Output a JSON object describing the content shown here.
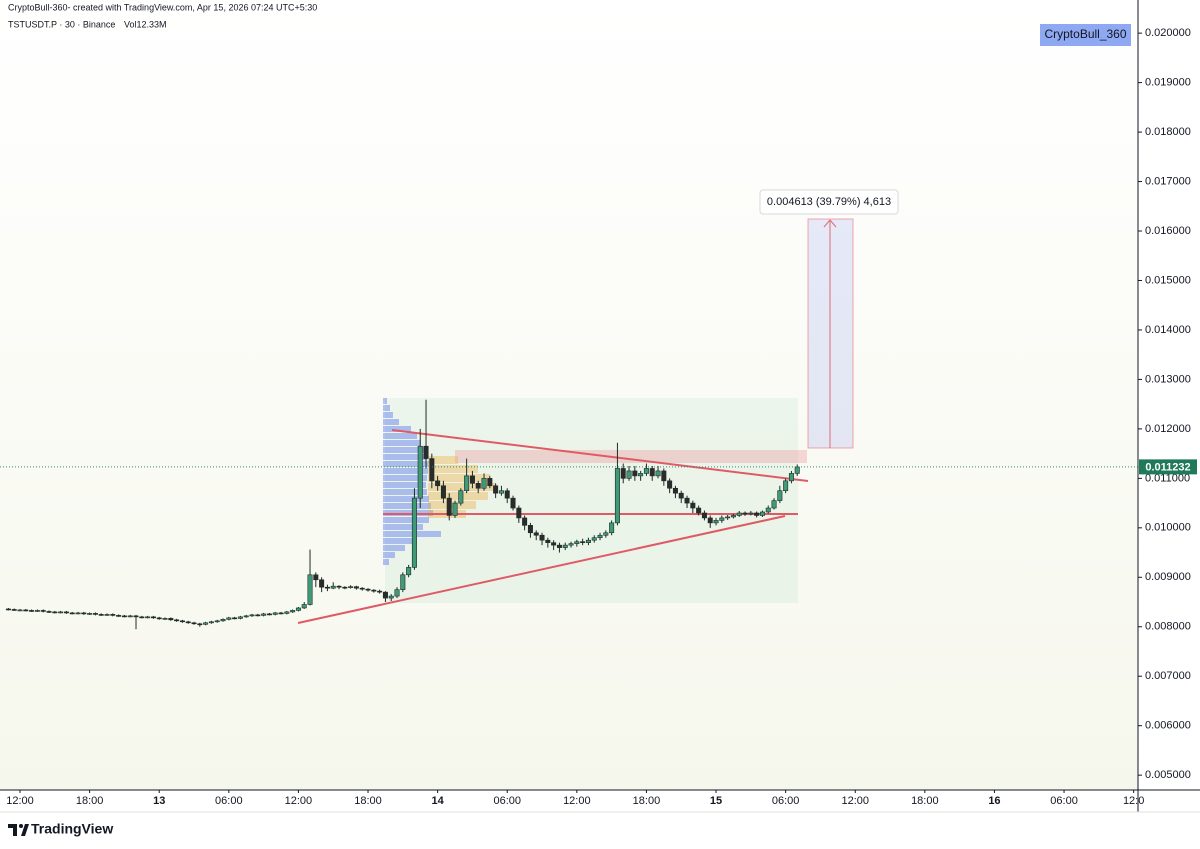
{
  "header": {
    "credit": "CryptoBull-360- created with TradingView.com, Apr 15, 2026 07:24 UTC+5:30",
    "symbol": "TSTUSDT.P · 30 · Binance",
    "volume": "Vol12.33M"
  },
  "watermark": "CryptoBull_360",
  "measure_label": "0.004613 (39.79%) 4,613",
  "footer_logo": "TradingView",
  "chart_data": {
    "type": "candlestick",
    "up_color": "#3f9a78",
    "down_color": "#2b2b2b",
    "last_price": 0.011232,
    "xlim": [
      -3.45,
      192.75
    ],
    "xticks": [
      {
        "value": 0,
        "label": "12:00"
      },
      {
        "value": 12,
        "label": "18:00"
      },
      {
        "value": 24,
        "label": "13"
      },
      {
        "value": 36,
        "label": "06:00"
      },
      {
        "value": 48,
        "label": "12:00"
      },
      {
        "value": 60,
        "label": "18:00"
      },
      {
        "value": 72,
        "label": "14"
      },
      {
        "value": 84,
        "label": "06:00"
      },
      {
        "value": 96,
        "label": "12:00"
      },
      {
        "value": 108,
        "label": "18:00"
      },
      {
        "value": 120,
        "label": "15"
      },
      {
        "value": 132,
        "label": "06:00"
      },
      {
        "value": 144,
        "label": "12:00"
      },
      {
        "value": 156,
        "label": "18:00"
      },
      {
        "value": 168,
        "label": "16"
      },
      {
        "value": 180,
        "label": "06:00"
      },
      {
        "value": 192,
        "label": "12:0"
      }
    ],
    "ylim": [
      0.0047,
      0.02067
    ],
    "yticks": [
      {
        "value": 0.005,
        "label": "0.005000"
      },
      {
        "value": 0.006,
        "label": "0.006000"
      },
      {
        "value": 0.007,
        "label": "0.007000"
      },
      {
        "value": 0.008,
        "label": "0.008000"
      },
      {
        "value": 0.009,
        "label": "0.009000"
      },
      {
        "value": 0.01,
        "label": "0.010000"
      },
      {
        "value": 0.011,
        "label": "0.011000"
      },
      {
        "value": 0.012,
        "label": "0.012000"
      },
      {
        "value": 0.013,
        "label": "0.013000"
      },
      {
        "value": 0.014,
        "label": "0.014000"
      },
      {
        "value": 0.015,
        "label": "0.015000"
      },
      {
        "value": 0.016,
        "label": "0.016000"
      },
      {
        "value": 0.017,
        "label": "0.017000"
      },
      {
        "value": 0.018,
        "label": "0.018000"
      },
      {
        "value": 0.019,
        "label": "0.019000"
      },
      {
        "value": 0.02,
        "label": "0.020000"
      }
    ],
    "x": [
      -2,
      -1,
      0,
      1,
      2,
      3,
      4,
      5,
      6,
      7,
      8,
      9,
      10,
      11,
      12,
      13,
      14,
      15,
      16,
      17,
      18,
      19,
      20,
      21,
      22,
      23,
      24,
      25,
      26,
      27,
      28,
      29,
      30,
      31,
      32,
      33,
      34,
      35,
      36,
      37,
      38,
      39,
      40,
      41,
      42,
      43,
      44,
      45,
      46,
      47,
      48,
      49,
      50,
      51,
      52,
      53,
      54,
      55,
      56,
      57,
      58,
      59,
      60,
      61,
      62,
      63,
      64,
      65,
      66,
      67,
      68,
      69,
      70,
      71,
      72,
      73,
      74,
      75,
      76,
      77,
      78,
      79,
      80,
      81,
      82,
      83,
      84,
      85,
      86,
      87,
      88,
      89,
      90,
      91,
      92,
      93,
      94,
      95,
      96,
      97,
      98,
      99,
      100,
      101,
      102,
      103,
      104,
      105,
      106,
      107,
      108,
      109,
      110,
      111,
      112,
      113,
      114,
      115,
      116,
      117,
      118,
      119,
      120,
      121,
      122,
      123,
      124,
      125,
      126,
      127,
      128,
      129,
      130,
      131,
      132,
      133,
      134
    ],
    "open": [
      0.00836,
      0.00835,
      0.00834,
      0.00834,
      0.00833,
      0.00832,
      0.00833,
      0.00831,
      0.0083,
      0.00829,
      0.0083,
      0.00828,
      0.00827,
      0.00828,
      0.00826,
      0.00827,
      0.00825,
      0.00824,
      0.00825,
      0.00823,
      0.00822,
      0.00821,
      0.00822,
      0.0082,
      0.00819,
      0.0082,
      0.00818,
      0.00816,
      0.00817,
      0.00814,
      0.00812,
      0.0081,
      0.00808,
      0.00806,
      0.00805,
      0.00808,
      0.0081,
      0.00812,
      0.00815,
      0.00818,
      0.00817,
      0.0082,
      0.00822,
      0.00824,
      0.00823,
      0.00826,
      0.00825,
      0.00828,
      0.00827,
      0.0083,
      0.00833,
      0.00838,
      0.00845,
      0.00905,
      0.00895,
      0.0088,
      0.00878,
      0.00882,
      0.0088,
      0.00879,
      0.00881,
      0.00878,
      0.00876,
      0.00874,
      0.00872,
      0.0087,
      0.00858,
      0.00862,
      0.00875,
      0.00905,
      0.0092,
      0.0106,
      0.01165,
      0.0114,
      0.01095,
      0.01085,
      0.0106,
      0.01025,
      0.0105,
      0.01075,
      0.01105,
      0.0109,
      0.0108,
      0.011,
      0.01085,
      0.0107,
      0.01075,
      0.0106,
      0.0104,
      0.0102,
      0.01005,
      0.0099,
      0.00985,
      0.00975,
      0.0097,
      0.00965,
      0.0096,
      0.00965,
      0.00968,
      0.00972,
      0.0097,
      0.00975,
      0.0098,
      0.00985,
      0.0099,
      0.0101,
      0.0112,
      0.011,
      0.01115,
      0.01105,
      0.0111,
      0.0112,
      0.01105,
      0.01115,
      0.01095,
      0.0108,
      0.0107,
      0.0106,
      0.0105,
      0.0104,
      0.0103,
      0.0102,
      0.0101,
      0.01015,
      0.0102,
      0.01022,
      0.01025,
      0.0103,
      0.01028,
      0.0103,
      0.01025,
      0.01032,
      0.0104,
      0.01055,
      0.01075,
      0.01095,
      0.0111
    ],
    "high": [
      0.00838,
      0.00837,
      0.00836,
      0.00836,
      0.00835,
      0.00835,
      0.00835,
      0.00833,
      0.00832,
      0.00832,
      0.00832,
      0.0083,
      0.0083,
      0.0083,
      0.00829,
      0.00829,
      0.00827,
      0.00827,
      0.00827,
      0.00825,
      0.00824,
      0.00824,
      0.00824,
      0.00822,
      0.00822,
      0.00822,
      0.0082,
      0.00819,
      0.00819,
      0.00816,
      0.00814,
      0.00812,
      0.0081,
      0.00808,
      0.0081,
      0.00812,
      0.00814,
      0.00817,
      0.0082,
      0.0082,
      0.00822,
      0.00824,
      0.00826,
      0.00826,
      0.00828,
      0.00828,
      0.0083,
      0.0083,
      0.00832,
      0.00835,
      0.0084,
      0.0085,
      0.00956,
      0.0091,
      0.009,
      0.00885,
      0.0089,
      0.00884,
      0.00882,
      0.00884,
      0.00883,
      0.0088,
      0.00878,
      0.00876,
      0.00875,
      0.00872,
      0.00866,
      0.0088,
      0.0091,
      0.00925,
      0.0108,
      0.012,
      0.01259,
      0.0115,
      0.01105,
      0.01095,
      0.0107,
      0.01055,
      0.0108,
      0.0114,
      0.01115,
      0.01095,
      0.0111,
      0.01105,
      0.0109,
      0.01085,
      0.0108,
      0.01065,
      0.01045,
      0.01025,
      0.0101,
      0.00995,
      0.0099,
      0.0098,
      0.00975,
      0.0097,
      0.0097,
      0.00972,
      0.00976,
      0.00978,
      0.0098,
      0.00985,
      0.0099,
      0.00995,
      0.01015,
      0.01172,
      0.0113,
      0.01125,
      0.01125,
      0.01115,
      0.0113,
      0.01125,
      0.01125,
      0.0112,
      0.011,
      0.01085,
      0.01075,
      0.01065,
      0.01055,
      0.01045,
      0.01035,
      0.01025,
      0.0102,
      0.01025,
      0.01026,
      0.01028,
      0.01034,
      0.01033,
      0.01034,
      0.01033,
      0.01035,
      0.01045,
      0.0106,
      0.01085,
      0.011,
      0.01115,
      0.01128
    ],
    "low": [
      0.00833,
      0.00832,
      0.00832,
      0.00831,
      0.0083,
      0.0083,
      0.00829,
      0.00828,
      0.00827,
      0.00827,
      0.00826,
      0.00825,
      0.00825,
      0.00824,
      0.00824,
      0.00823,
      0.00822,
      0.00822,
      0.00821,
      0.0082,
      0.00819,
      0.00819,
      0.00795,
      0.00817,
      0.00817,
      0.00816,
      0.00814,
      0.00814,
      0.00812,
      0.0081,
      0.00808,
      0.00806,
      0.00804,
      0.008,
      0.00803,
      0.00806,
      0.00808,
      0.0081,
      0.00813,
      0.00815,
      0.00815,
      0.00818,
      0.0082,
      0.00821,
      0.00821,
      0.00823,
      0.00823,
      0.00825,
      0.00825,
      0.00828,
      0.00831,
      0.00836,
      0.00843,
      0.0088,
      0.0087,
      0.00872,
      0.00876,
      0.00876,
      0.00876,
      0.00877,
      0.00875,
      0.00873,
      0.00871,
      0.00869,
      0.00867,
      0.0085,
      0.00852,
      0.00858,
      0.0087,
      0.009,
      0.00915,
      0.0104,
      0.0112,
      0.0108,
      0.01075,
      0.0105,
      0.01015,
      0.0102,
      0.01045,
      0.0107,
      0.0108,
      0.0107,
      0.01075,
      0.0108,
      0.0106,
      0.01065,
      0.0105,
      0.01035,
      0.0101,
      0.00995,
      0.0098,
      0.00975,
      0.00965,
      0.0096,
      0.00955,
      0.0095,
      0.00955,
      0.0096,
      0.00962,
      0.00965,
      0.00965,
      0.0097,
      0.00975,
      0.0098,
      0.00985,
      0.01005,
      0.0109,
      0.01095,
      0.01095,
      0.01095,
      0.01105,
      0.01095,
      0.011,
      0.01085,
      0.0107,
      0.0106,
      0.0105,
      0.0104,
      0.0103,
      0.01025,
      0.01015,
      0.01,
      0.01005,
      0.0101,
      0.01016,
      0.01019,
      0.01022,
      0.01024,
      0.01025,
      0.01021,
      0.01022,
      0.01029,
      0.01037,
      0.0105,
      0.0107,
      0.0109,
      0.01105
    ],
    "close": [
      0.00835,
      0.00834,
      0.00834,
      0.00833,
      0.00832,
      0.00833,
      0.00831,
      0.0083,
      0.00829,
      0.0083,
      0.00828,
      0.00827,
      0.00828,
      0.00826,
      0.00827,
      0.00825,
      0.00824,
      0.00825,
      0.00823,
      0.00822,
      0.00821,
      0.00822,
      0.0082,
      0.00819,
      0.0082,
      0.00818,
      0.00816,
      0.00817,
      0.00814,
      0.00812,
      0.0081,
      0.00808,
      0.00806,
      0.00805,
      0.00808,
      0.0081,
      0.00812,
      0.00815,
      0.00818,
      0.00817,
      0.0082,
      0.00822,
      0.00824,
      0.00823,
      0.00826,
      0.00825,
      0.00828,
      0.00827,
      0.0083,
      0.00833,
      0.00838,
      0.00845,
      0.00905,
      0.00895,
      0.0088,
      0.00878,
      0.00882,
      0.0088,
      0.00879,
      0.00881,
      0.00878,
      0.00876,
      0.00874,
      0.00872,
      0.0087,
      0.00858,
      0.00862,
      0.00875,
      0.00905,
      0.0092,
      0.0106,
      0.01165,
      0.0114,
      0.01095,
      0.01085,
      0.0106,
      0.01025,
      0.0105,
      0.01075,
      0.01105,
      0.0109,
      0.0108,
      0.011,
      0.01085,
      0.0107,
      0.01075,
      0.0106,
      0.0104,
      0.0102,
      0.01005,
      0.0099,
      0.00985,
      0.00975,
      0.0097,
      0.00965,
      0.0096,
      0.00965,
      0.00968,
      0.00972,
      0.0097,
      0.00975,
      0.0098,
      0.00985,
      0.0099,
      0.0101,
      0.0112,
      0.011,
      0.01115,
      0.01105,
      0.0111,
      0.0112,
      0.01105,
      0.01115,
      0.01095,
      0.0108,
      0.0107,
      0.0106,
      0.0105,
      0.0104,
      0.0103,
      0.0102,
      0.0101,
      0.01015,
      0.0102,
      0.01022,
      0.01025,
      0.0103,
      0.01028,
      0.0103,
      0.01025,
      0.01032,
      0.0104,
      0.01055,
      0.01075,
      0.01095,
      0.0111,
      0.01123
    ]
  }
}
